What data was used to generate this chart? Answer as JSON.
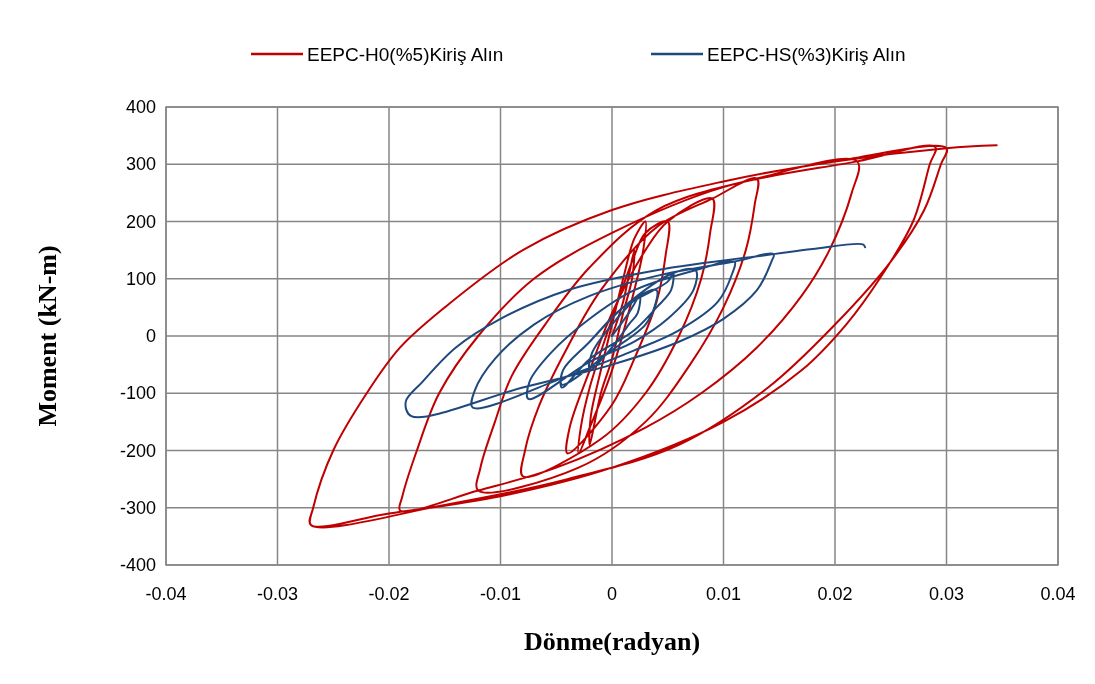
{
  "chart_data": {
    "type": "line",
    "xlabel": "Dönme(radyan)",
    "ylabel": "Moment (kN-m)",
    "xlim": [
      -0.04,
      0.04
    ],
    "ylim": [
      -400,
      400
    ],
    "xticks": [
      -0.04,
      -0.03,
      -0.02,
      -0.01,
      0,
      0.01,
      0.02,
      0.03,
      0.04
    ],
    "yticks": [
      -400,
      -300,
      -200,
      -100,
      0,
      100,
      200,
      300,
      400
    ],
    "grid": true,
    "legend": "top",
    "marker": "none",
    "line_style": "solid",
    "series": [
      {
        "name": "EEPC-H0(%5)Kiriş Alın",
        "color": "#c00000",
        "x": [
          0,
          0.001,
          0.002,
          0.0018,
          0.001,
          0,
          -0.001,
          -0.002,
          -0.0019,
          -0.001,
          0,
          0.001,
          0.002,
          0.003,
          0.0028,
          0.002,
          0,
          -0.002,
          -0.003,
          -0.0028,
          -0.002,
          0,
          0.002,
          0.003,
          0.005,
          0.0048,
          0.004,
          0.002,
          0,
          -0.004,
          -0.0038,
          -0.002,
          0,
          0.003,
          0.005,
          0.009,
          0.0088,
          0.008,
          0.006,
          0.003,
          -0.001,
          -0.008,
          -0.0078,
          -0.0065,
          -0.004,
          -0.001,
          0.004,
          0.009,
          0.013,
          0.0128,
          0.012,
          0.01,
          0.007,
          0.003,
          -0.003,
          -0.012,
          -0.0118,
          -0.0105,
          -0.009,
          -0.006,
          -0.002,
          0.004,
          0.013,
          0.022,
          0.0215,
          0.0195,
          0.017,
          0.013,
          0.008,
          0.003,
          -0.005,
          -0.012,
          -0.019,
          -0.0188,
          -0.0175,
          -0.0155,
          -0.012,
          -0.007,
          0,
          0.01,
          0.022,
          0.029,
          0.0285,
          0.027,
          0.024,
          0.021,
          0.017,
          0.01,
          0,
          -0.01,
          -0.02,
          -0.027,
          -0.0268,
          -0.025,
          -0.022,
          -0.019,
          -0.015,
          -0.008,
          0,
          0.01,
          0.02,
          0.03,
          0.0295,
          0.028,
          0.025,
          0.02,
          0.014,
          0.006,
          -0.004,
          -0.015,
          -0.027,
          -0.0268,
          -0.025,
          -0.022,
          -0.019,
          -0.015,
          -0.008,
          0,
          0.01,
          0.02,
          0.03,
          0.0345
        ],
        "values": [
          0,
          60,
          150,
          100,
          40,
          -40,
          -100,
          -190,
          -140,
          -60,
          20,
          100,
          170,
          200,
          150,
          80,
          -60,
          -160,
          -205,
          -160,
          -90,
          30,
          140,
          180,
          200,
          140,
          60,
          -40,
          -120,
          -205,
          -160,
          -60,
          40,
          150,
          200,
          240,
          180,
          100,
          0,
          -100,
          -180,
          -245,
          -200,
          -120,
          -20,
          80,
          190,
          240,
          275,
          230,
          150,
          50,
          -50,
          -150,
          -230,
          -270,
          -230,
          -150,
          -70,
          20,
          120,
          220,
          275,
          305,
          250,
          150,
          70,
          -20,
          -100,
          -160,
          -230,
          -270,
          -305,
          -280,
          -200,
          -100,
          0,
          100,
          180,
          260,
          305,
          330,
          300,
          200,
          100,
          20,
          -60,
          -150,
          -230,
          -280,
          -310,
          -330,
          -300,
          -200,
          -100,
          -20,
          50,
          150,
          220,
          270,
          305,
          328,
          300,
          220,
          130,
          20,
          -90,
          -190,
          -250,
          -295,
          -330,
          -300,
          -200,
          -100,
          -20,
          50,
          150,
          220,
          270,
          305,
          328,
          333
        ]
      },
      {
        "name": "EEPC-HS(%3)Kiriş Alın",
        "color": "#1f497d",
        "x": [
          0,
          0.0015,
          0.0025,
          0.0023,
          0.0015,
          0,
          -0.002,
          -0.0018,
          0,
          0.0025,
          0.004,
          0.0038,
          0.003,
          0,
          -0.0045,
          -0.0044,
          -0.002,
          0.001,
          0.005,
          0.0055,
          0.0053,
          0.004,
          0.002,
          -0.002,
          -0.0045,
          -0.0044,
          -0.002,
          0.001,
          0.0055,
          0.0075,
          0.0073,
          0.005,
          0.002,
          -0.002,
          -0.0075,
          -0.0074,
          -0.0055,
          -0.002,
          0.002,
          0.0075,
          0.011,
          0.0108,
          0.0095,
          0.006,
          0.002,
          -0.004,
          -0.0125,
          -0.0123,
          -0.0105,
          -0.007,
          -0.002,
          0.004,
          0.011,
          0.0145,
          0.0143,
          0.013,
          0.01,
          0.006,
          0,
          -0.008,
          -0.018,
          -0.0185,
          -0.017,
          -0.014,
          -0.01,
          -0.004,
          0.004,
          0.0145,
          0.018,
          0.0225,
          0.0227
        ],
        "values": [
          0,
          40,
          70,
          40,
          20,
          -20,
          -60,
          -30,
          20,
          70,
          80,
          50,
          20,
          -25,
          -85,
          -60,
          -10,
          50,
          95,
          110,
          80,
          50,
          10,
          -40,
          -90,
          -60,
          -10,
          50,
          110,
          115,
          80,
          30,
          -10,
          -45,
          -110,
          -80,
          -30,
          30,
          80,
          115,
          130,
          110,
          60,
          10,
          -25,
          -70,
          -125,
          -95,
          -40,
          20,
          70,
          105,
          130,
          143,
          130,
          80,
          30,
          -10,
          -50,
          -90,
          -140,
          -115,
          -80,
          -20,
          30,
          80,
          115,
          143,
          152,
          160,
          155
        ]
      }
    ]
  }
}
